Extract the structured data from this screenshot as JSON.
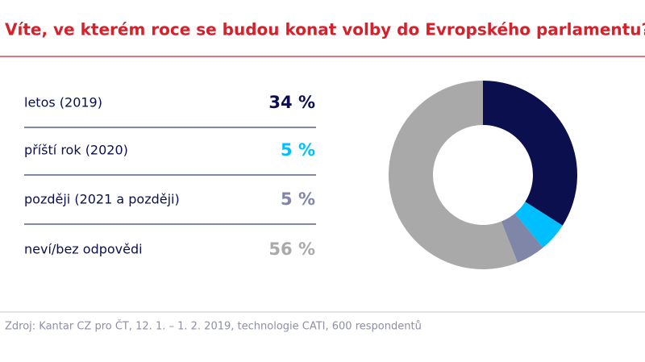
{
  "chart_data": {
    "type": "donut",
    "title": "Víte, ve kterém roce se budou konat volby do Evropského parlamentu?",
    "categories": [
      "letos (2019)",
      "příští rok (2020)",
      "později (2021 a později)",
      "neví/bez odpovědi"
    ],
    "values": [
      34,
      5,
      5,
      56
    ],
    "value_labels": [
      "34 %",
      "5 %",
      "5 %",
      "56 %"
    ],
    "colors": [
      "#0b0f4e",
      "#00bfff",
      "#7f86a8",
      "#a9a9a9"
    ],
    "source": "Zdroj: Kantar CZ pro ČT, 12. 1. – 1. 2. 2019, technologie CATI, 600 respondentů"
  }
}
